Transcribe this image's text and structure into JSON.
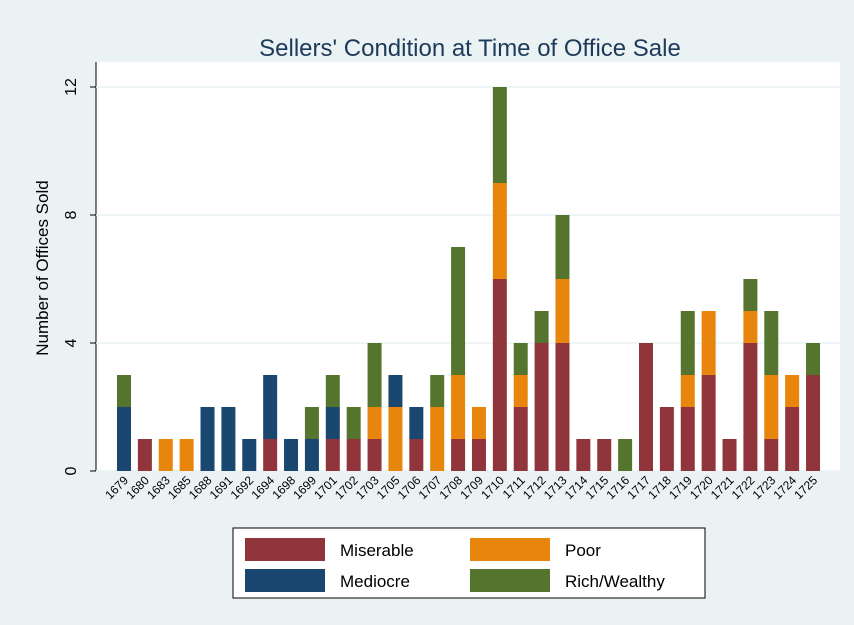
{
  "chart_data": {
    "type": "stacked_bar",
    "title": "Sellers' Condition at Time of Office Sale",
    "y_label": "Number of Offices Sold",
    "categories": [
      "1679",
      "1680",
      "1683",
      "1685",
      "1688",
      "1691",
      "1692",
      "1694",
      "1698",
      "1699",
      "1701",
      "1702",
      "1703",
      "1705",
      "1706",
      "1707",
      "1708",
      "1709",
      "1710",
      "1711",
      "1712",
      "1713",
      "1714",
      "1715",
      "1716",
      "1717",
      "1718",
      "1719",
      "1720",
      "1721",
      "1722",
      "1723",
      "1724",
      "1725"
    ],
    "series": [
      {
        "name": "Miserable",
        "color": "#90353b",
        "values": [
          0,
          1,
          0,
          0,
          0,
          0,
          0,
          1,
          0,
          0,
          1,
          1,
          1,
          0,
          1,
          0,
          1,
          1,
          6,
          2,
          4,
          4,
          1,
          1,
          0,
          4,
          2,
          2,
          3,
          1,
          4,
          1,
          2,
          3
        ]
      },
      {
        "name": "Poor",
        "color": "#e8850c",
        "values": [
          0,
          0,
          1,
          1,
          0,
          0,
          0,
          0,
          0,
          0,
          0,
          0,
          1,
          2,
          0,
          2,
          2,
          1,
          3,
          1,
          0,
          2,
          0,
          0,
          0,
          0,
          0,
          1,
          2,
          0,
          1,
          2,
          1,
          0
        ]
      },
      {
        "name": "Mediocre",
        "color": "#1a476f",
        "values": [
          2,
          0,
          0,
          0,
          2,
          2,
          1,
          2,
          1,
          1,
          1,
          0,
          0,
          1,
          1,
          0,
          0,
          0,
          0,
          0,
          0,
          0,
          0,
          0,
          0,
          0,
          0,
          0,
          0,
          0,
          0,
          0,
          0,
          0
        ]
      },
      {
        "name": "Rich/Wealthy",
        "color": "#55752f",
        "values": [
          1,
          0,
          0,
          0,
          0,
          0,
          0,
          0,
          0,
          1,
          1,
          1,
          2,
          0,
          0,
          1,
          4,
          0,
          3,
          1,
          1,
          2,
          0,
          0,
          1,
          0,
          0,
          2,
          0,
          0,
          1,
          2,
          0,
          1
        ]
      }
    ],
    "ylim": [
      0,
      12
    ],
    "yticks": [
      0,
      4,
      8,
      12
    ],
    "grid": true
  }
}
